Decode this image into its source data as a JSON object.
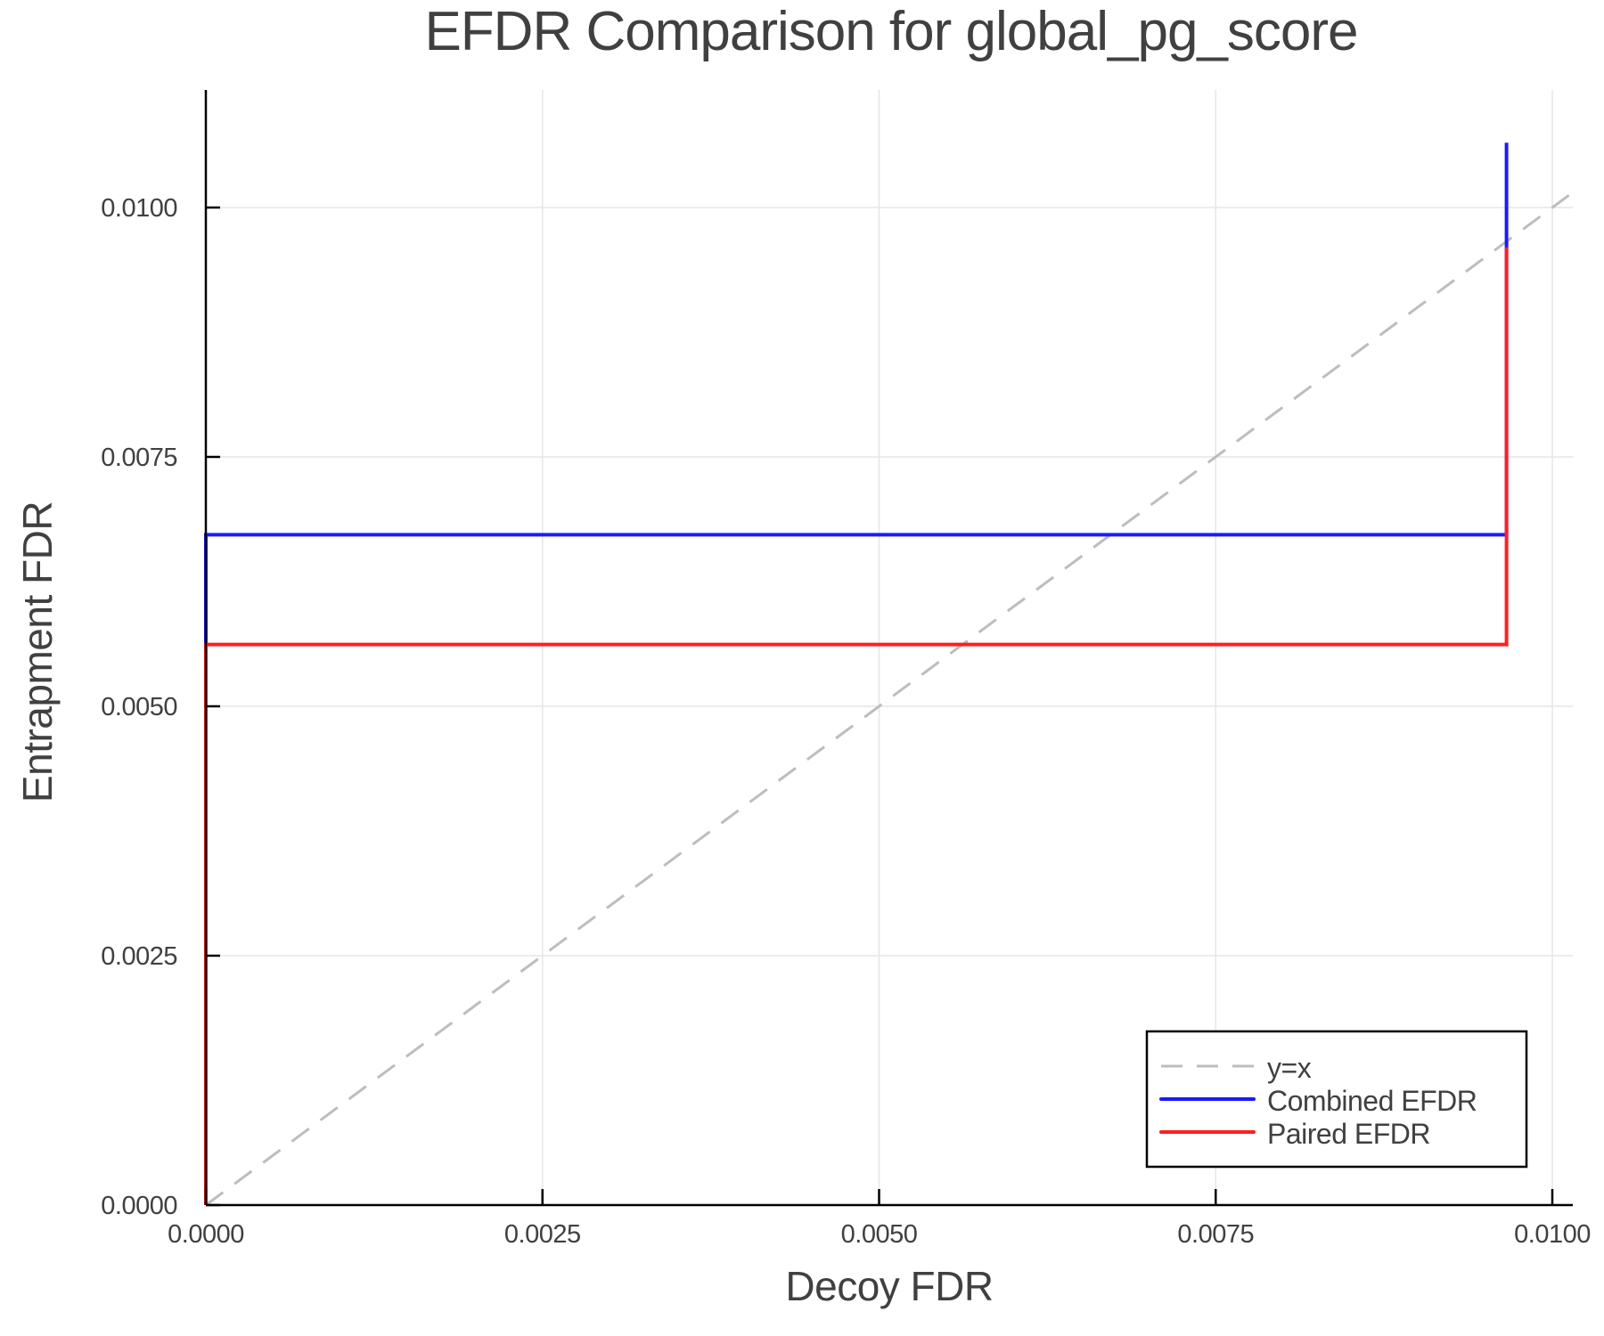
{
  "chart_data": {
    "type": "line",
    "title": "EFDR Comparison for global_pg_score",
    "xlabel": "Decoy FDR",
    "ylabel": "Entrapment FDR",
    "xlim": [
      0.0,
      0.01015
    ],
    "ylim": [
      0.0,
      0.01118
    ],
    "grid": true,
    "legend_position": "bottom-right",
    "x_ticks": [
      0.0,
      0.0025,
      0.005,
      0.0075,
      0.01
    ],
    "x_tick_labels": [
      "0.0000",
      "0.0025",
      "0.0050",
      "0.0075",
      "0.0100"
    ],
    "y_ticks": [
      0.0,
      0.0025,
      0.005,
      0.0075,
      0.01
    ],
    "y_tick_labels": [
      "0.0000",
      "0.0025",
      "0.0050",
      "0.0075",
      "0.0100"
    ],
    "series": [
      {
        "name": "y=x",
        "color": "#bdbdbd",
        "style": "dashed",
        "x": [
          0.0,
          0.01015
        ],
        "y": [
          0.0,
          0.01015
        ]
      },
      {
        "name": "Combined EFDR",
        "color": "#1a1aff",
        "style": "solid",
        "x": [
          0.0,
          0.0,
          0.00966,
          0.00966
        ],
        "y": [
          0.0,
          0.00672,
          0.00672,
          0.01065
        ]
      },
      {
        "name": "Paired EFDR",
        "color": "#ff1f1f",
        "style": "solid",
        "x": [
          0.0,
          0.0,
          0.00966,
          0.00966
        ],
        "y": [
          0.0,
          0.00562,
          0.00562,
          0.0096
        ]
      }
    ]
  },
  "legend": {
    "items": [
      {
        "label": "y=x"
      },
      {
        "label": "Combined EFDR"
      },
      {
        "label": "Paired EFDR"
      }
    ]
  }
}
